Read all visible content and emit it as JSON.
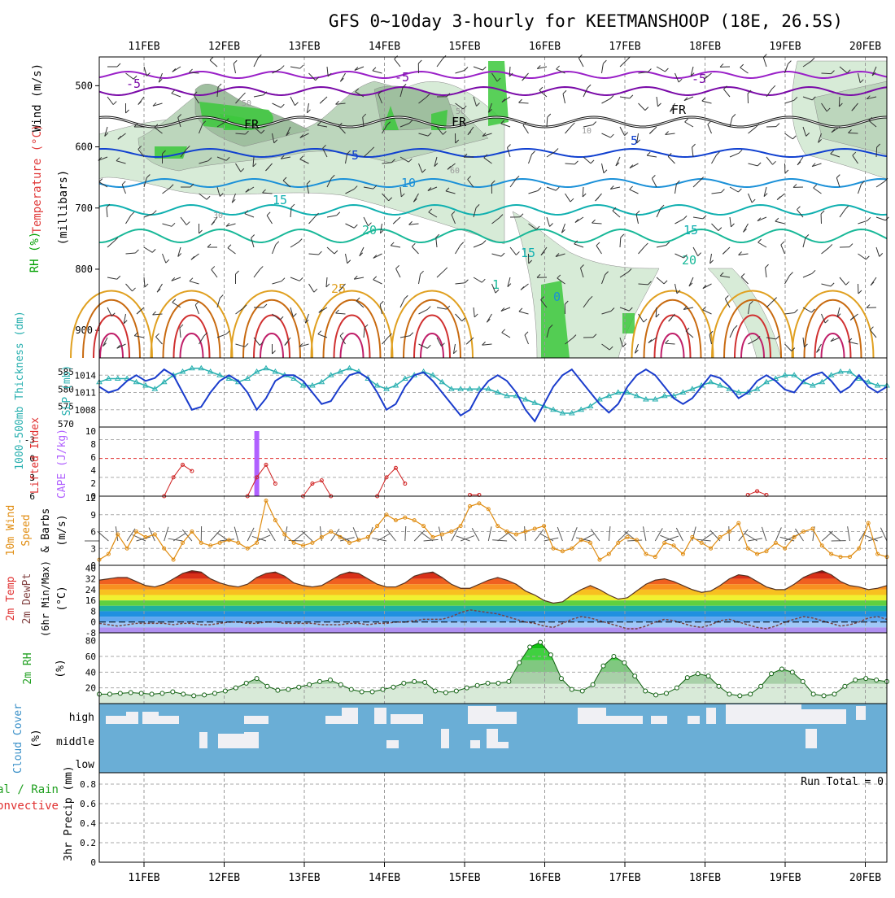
{
  "title": "GFS 0~10day 3-hourly for KEETMANSHOOP (18E, 26.5S)",
  "dates": [
    "11FEB",
    "12FEB",
    "13FEB",
    "14FEB",
    "15FEB",
    "16FEB",
    "17FEB",
    "18FEB",
    "19FEB",
    "20FEB"
  ],
  "colors": {
    "temp_contour_cold": "#7a0aa8",
    "temp_contour_mid": "#1040d0",
    "temp_contour_warm": "#10b0b0",
    "temp_contour_hot": "#e0a020",
    "rh_green": "#3cc83c",
    "slp_line": "#1a3ccc",
    "thickness_line": "#2ab0b0",
    "lifted_index": "#d02020",
    "cape": "#b060ff",
    "wind_speed": "#e08c10",
    "rh2m": "#20a020",
    "cloud_bg": "#6aaed6",
    "cloud_fill": "#f0f0f4"
  },
  "panels": {
    "upper": {
      "ylabel_parts": [
        "Wind (m/s)",
        "Temperature (°C)",
        "RH (%)",
        "(millibars)"
      ],
      "pressure_ticks": [
        500,
        600,
        700,
        800,
        900
      ],
      "contour_labels": [
        "-5",
        "-5",
        "-5",
        "FR",
        "FR",
        "FR",
        "5",
        "5",
        "10",
        "15",
        "15",
        "20",
        "20",
        "15",
        "1",
        "25",
        "0",
        "30",
        "50",
        "10",
        "60",
        "50"
      ]
    },
    "slp": {
      "label_left": "1000-500mb Thickness (dm)",
      "label_right": "SLP (mb)",
      "thick_ticks": [
        "585",
        "580",
        "575",
        "570"
      ],
      "slp_ticks": [
        "1014",
        "1011",
        "1008"
      ]
    },
    "cape": {
      "label_left": "Lifted Index",
      "label_right": "CAPE (J/kg)",
      "li_ticks": [
        "-3",
        "0",
        "3",
        "6"
      ],
      "cape_ticks": [
        "10",
        "8",
        "6",
        "4",
        "2",
        "0"
      ]
    },
    "wind": {
      "label_lines": [
        "10m Wind",
        "Speed",
        "& Barbs",
        "(m/s)"
      ],
      "ticks": [
        "12",
        "9",
        "6",
        "3",
        "0"
      ]
    },
    "temp": {
      "label_lines": [
        "2m Temp",
        "2m DewPt",
        "(6hr Min/Max)",
        "(°C)"
      ],
      "ticks": [
        "40",
        "32",
        "24",
        "16",
        "8",
        "0",
        "-8"
      ]
    },
    "rh": {
      "label_lines": [
        "2m RH",
        "(%)"
      ],
      "ticks": [
        "80",
        "60",
        "40",
        "20"
      ]
    },
    "cloud": {
      "label_lines": [
        "Cloud Cover",
        "(%)"
      ],
      "levels": [
        "high",
        "middle",
        "low"
      ]
    },
    "precip": {
      "label_lines": [
        "Total / Rain",
        "Convective",
        "3hr Precip (mm)"
      ],
      "ticks": [
        "0.8",
        "0.6",
        "0.4",
        "0.2",
        "0"
      ],
      "run_total": "Run Total = 0"
    }
  },
  "chart_data": [
    {
      "type": "line",
      "name": "SLP (mb)",
      "x": [
        0,
        1,
        2,
        3,
        4,
        5,
        6,
        7,
        8,
        9,
        10,
        11,
        12,
        13,
        14,
        15,
        16,
        17,
        18,
        19,
        20,
        21,
        22,
        23,
        24,
        25,
        26,
        27,
        28,
        29,
        30,
        31,
        32,
        33,
        34,
        35,
        36,
        37,
        38,
        39,
        40,
        41,
        42,
        43,
        44,
        45,
        46,
        47,
        48,
        49,
        50,
        51,
        52,
        53,
        54,
        55,
        56,
        57,
        58,
        59,
        60,
        61,
        62,
        63,
        64,
        65,
        66,
        67,
        68,
        69,
        70,
        71,
        72,
        73,
        74,
        75,
        76,
        77,
        78,
        79,
        80,
        81,
        82,
        83,
        84,
        85
      ],
      "values": [
        1012,
        1011,
        1011.5,
        1013,
        1014,
        1013,
        1013.5,
        1015,
        1014,
        1011,
        1008,
        1008.5,
        1011,
        1013,
        1014,
        1013,
        1011,
        1008,
        1010,
        1013,
        1014,
        1014,
        1013,
        1011,
        1009,
        1009.5,
        1012,
        1014,
        1014.5,
        1013.5,
        1011,
        1008,
        1009,
        1012,
        1014,
        1014.5,
        1013,
        1011,
        1009,
        1007,
        1008,
        1011,
        1013,
        1014,
        1013,
        1011,
        1008,
        1006,
        1009,
        1012,
        1014,
        1015,
        1013,
        1011,
        1009,
        1007.5,
        1009,
        1012,
        1014,
        1015,
        1014,
        1012,
        1010,
        1009,
        1010,
        1012,
        1014,
        1013.5,
        1012,
        1010,
        1011,
        1013,
        1014,
        1013,
        1011.5,
        1011,
        1013,
        1014,
        1014.5,
        1013,
        1011,
        1012,
        1014,
        1012,
        1011,
        1012
      ],
      "ylim": [
        1005,
        1017
      ]
    },
    {
      "type": "line",
      "name": "1000-500mb Thickness (dm)",
      "values": [
        582,
        583,
        583,
        583,
        582,
        581,
        580,
        582,
        584,
        585,
        586,
        586,
        585,
        584,
        583,
        582,
        583,
        585,
        586,
        585,
        584,
        583,
        581,
        581,
        582,
        584,
        585,
        586,
        585,
        583,
        581,
        580,
        581,
        583,
        584,
        585,
        584,
        582,
        580,
        580,
        580,
        580,
        580,
        579,
        578,
        578,
        577,
        576,
        575,
        574,
        573,
        573,
        574,
        575,
        577,
        578,
        579,
        579,
        578,
        577,
        577,
        578,
        578,
        579,
        580,
        581,
        582,
        581,
        580,
        579,
        579,
        580,
        582,
        583,
        584,
        584,
        582,
        581,
        582,
        584,
        585,
        585,
        583,
        582,
        581,
        581
      ],
      "ylim": [
        569,
        589
      ]
    },
    {
      "type": "line",
      "name": "Lifted Index",
      "segments": [
        {
          "x": [
            7,
            8,
            9,
            10
          ],
          "values": [
            6,
            3,
            1,
            2
          ]
        },
        {
          "x": [
            16,
            17,
            18,
            19
          ],
          "values": [
            6,
            3,
            1,
            4
          ]
        },
        {
          "x": [
            22,
            23,
            24,
            25
          ],
          "values": [
            6,
            4,
            3.5,
            6
          ]
        },
        {
          "x": [
            30,
            31,
            32,
            33
          ],
          "values": [
            6,
            3,
            1.5,
            4
          ]
        },
        {
          "x": [
            40,
            41
          ],
          "values": [
            5.8,
            5.8
          ]
        },
        {
          "x": [
            70,
            71,
            72
          ],
          "values": [
            5.8,
            5.2,
            5.8
          ]
        }
      ],
      "ylim": [
        -5,
        6
      ]
    },
    {
      "type": "bar",
      "name": "CAPE (J/kg)",
      "x": [
        17
      ],
      "values": [
        10
      ],
      "ylim": [
        0,
        10
      ]
    },
    {
      "type": "line",
      "name": "10m Wind Speed",
      "values": [
        1,
        2,
        5.5,
        3,
        6,
        5,
        5.5,
        3,
        1,
        4,
        6,
        4,
        3.5,
        4,
        4.5,
        4,
        3,
        4,
        11.5,
        8,
        5.5,
        4,
        3.5,
        4,
        5,
        6,
        5,
        4,
        4.5,
        5,
        7,
        9,
        8,
        8.5,
        8,
        7,
        5,
        5.5,
        6,
        7,
        10.5,
        11,
        10,
        7,
        6,
        5.5,
        6,
        6.5,
        7,
        3,
        2.5,
        3,
        4.5,
        4,
        1,
        2,
        4,
        5,
        4.5,
        2,
        1.5,
        4,
        3.5,
        2,
        5,
        4,
        3,
        5,
        6,
        7.5,
        3,
        2,
        2.5,
        4,
        3,
        5,
        6,
        6.5,
        3.5,
        2,
        1.5,
        1.5,
        3,
        7.5,
        2,
        1.5
      ],
      "ylim": [
        0,
        12
      ]
    },
    {
      "type": "area",
      "name": "2m Temp",
      "values": [
        31,
        32,
        33,
        33,
        30,
        27,
        26,
        28,
        32,
        36,
        38,
        37,
        32,
        29,
        27,
        26,
        28,
        33,
        36,
        37,
        34,
        29,
        27,
        26,
        27,
        31,
        35,
        37,
        36,
        32,
        28,
        26,
        26,
        29,
        34,
        36,
        37,
        33,
        28,
        25,
        25,
        28,
        31,
        33,
        31,
        28,
        23,
        20,
        16,
        14,
        15,
        20,
        24,
        27,
        24,
        20,
        17,
        18,
        23,
        28,
        31,
        32,
        30,
        27,
        24,
        22,
        23,
        27,
        32,
        35,
        34,
        30,
        26,
        24,
        24,
        28,
        33,
        36,
        38,
        35,
        30,
        27,
        26,
        24,
        25,
        27
      ],
      "ylim": [
        -8,
        42
      ]
    },
    {
      "type": "line",
      "name": "2m DewPt",
      "values": [
        -1,
        -2,
        -3,
        -2,
        -1,
        -1,
        -1,
        -1,
        -2,
        -1,
        -1,
        -2,
        -2,
        -1,
        0,
        0,
        -1,
        -1,
        0,
        0,
        -1,
        -1,
        -1,
        -1,
        -2,
        -2,
        -2,
        -1,
        -1,
        -2,
        -1,
        -1,
        0,
        0,
        1,
        2,
        2,
        2,
        4,
        7,
        9,
        8,
        7,
        6,
        4,
        2,
        0,
        -1,
        -3,
        -4,
        -1,
        2,
        4,
        3,
        1,
        -1,
        -3,
        -5,
        -5,
        -3,
        0,
        2,
        1,
        -1,
        -3,
        -4,
        -2,
        1,
        2,
        0,
        -2,
        -4,
        -5,
        -3,
        0,
        2,
        4,
        3,
        1,
        -1,
        -3,
        -2,
        0,
        3,
        4,
        2
      ],
      "ylim": [
        -8,
        42
      ]
    },
    {
      "type": "area",
      "name": "2m RH",
      "values": [
        12,
        12,
        13,
        14,
        13,
        12,
        13,
        15,
        12,
        10,
        11,
        13,
        16,
        20,
        26,
        32,
        22,
        17,
        18,
        21,
        24,
        28,
        30,
        24,
        18,
        15,
        15,
        18,
        21,
        26,
        28,
        27,
        16,
        14,
        16,
        20,
        23,
        26,
        26,
        28,
        52,
        72,
        78,
        62,
        32,
        18,
        16,
        24,
        48,
        60,
        52,
        35,
        16,
        11,
        13,
        20,
        33,
        38,
        35,
        22,
        12,
        10,
        12,
        22,
        38,
        44,
        40,
        28,
        12,
        10,
        12,
        22,
        30,
        32,
        30,
        28
      ],
      "ylim": [
        0,
        90
      ]
    },
    {
      "type": "bar",
      "name": "3hr Precip (mm)",
      "values": [
        0
      ],
      "ylim": [
        0,
        0.9
      ]
    }
  ]
}
